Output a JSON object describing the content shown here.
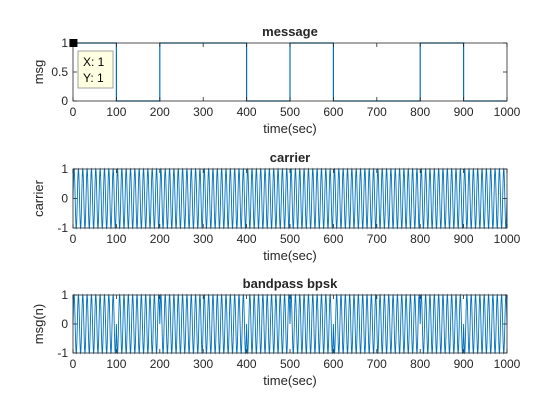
{
  "chart_data": [
    {
      "type": "line",
      "title": "message",
      "xlabel": "time(sec)",
      "ylabel": "msg",
      "xlim": [
        0,
        1000
      ],
      "ylim": [
        0,
        1
      ],
      "xticks": [
        0,
        100,
        200,
        300,
        400,
        500,
        600,
        700,
        800,
        900,
        1000
      ],
      "yticks": [
        0,
        0.5,
        1
      ],
      "ytick_labels": [
        "0",
        "0.5",
        "1"
      ],
      "signal": "square",
      "bits": [
        1,
        0,
        1,
        1,
        0,
        1,
        0,
        0,
        1,
        0
      ],
      "bit_duration": 100,
      "color": "#0072bd",
      "datatip": {
        "x": 1,
        "y": 1,
        "x_text": "X: 1",
        "y_text": "Y: 1"
      }
    },
    {
      "type": "line",
      "title": "carrier",
      "xlabel": "time(sec)",
      "ylabel": "carrier",
      "xlim": [
        0,
        1000
      ],
      "ylim": [
        -1,
        1
      ],
      "xticks": [
        0,
        100,
        200,
        300,
        400,
        500,
        600,
        700,
        800,
        900,
        1000
      ],
      "yticks": [
        -1,
        0,
        1
      ],
      "ytick_labels": [
        "-1",
        "0",
        "1"
      ],
      "signal": "sine",
      "cycles_per_bit": 10,
      "color": "#0072bd"
    },
    {
      "type": "line",
      "title": "bandpass bpsk",
      "xlabel": "time(sec)",
      "ylabel": "msg(n)",
      "xlim": [
        0,
        1000
      ],
      "ylim": [
        -1,
        1
      ],
      "xticks": [
        0,
        100,
        200,
        300,
        400,
        500,
        600,
        700,
        800,
        900,
        1000
      ],
      "yticks": [
        -1,
        0,
        1
      ],
      "ytick_labels": [
        "-1",
        "0",
        "1"
      ],
      "signal": "bpsk",
      "color": "#0072bd"
    }
  ]
}
